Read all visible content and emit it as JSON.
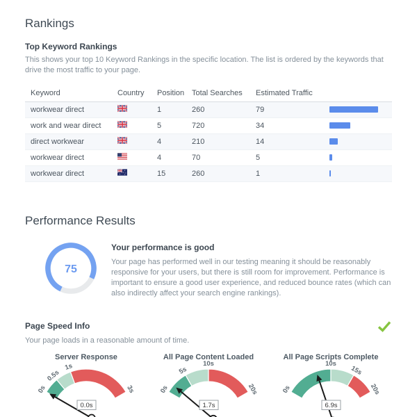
{
  "rankings": {
    "title": "Rankings",
    "subtitle": "Top Keyword Rankings",
    "description": "This shows your top 10 Keyword Rankings in the specific location. The list is ordered by the keywords that drive the most traffic to your page.",
    "table": {
      "columns": [
        "Keyword",
        "Country",
        "Position",
        "Total Searches",
        "Estimated Traffic"
      ],
      "bar_color": "#5b8ceb",
      "rows": [
        {
          "keyword": "workwear direct",
          "country": "gb",
          "position": "1",
          "total_searches": "260",
          "estimated_traffic": "79"
        },
        {
          "keyword": "work and wear direct",
          "country": "gb",
          "position": "5",
          "total_searches": "720",
          "estimated_traffic": "34"
        },
        {
          "keyword": "direct workwear",
          "country": "gb",
          "position": "4",
          "total_searches": "210",
          "estimated_traffic": "14"
        },
        {
          "keyword": "workwear direct",
          "country": "us",
          "position": "4",
          "total_searches": "70",
          "estimated_traffic": "5"
        },
        {
          "keyword": "workwear direct",
          "country": "au",
          "position": "15",
          "total_searches": "260",
          "estimated_traffic": "1"
        }
      ]
    }
  },
  "performance": {
    "title": "Performance Results",
    "score": "75",
    "score_color": "#74a2f1",
    "score_track_color": "#e8eaec",
    "result_heading": "Your performance is good",
    "result_text": "Your page has performed well in our testing meaning it should be reasonably responsive for your users, but there is still room for improvement. Performance is important to ensure a good user experience, and reduced bounce rates (which can also indirectly affect your search engine rankings)."
  },
  "page_speed": {
    "title": "Page Speed Info",
    "status": "pass",
    "check_color": "#86c440",
    "description": "Your page loads in a reasonable amount of time."
  },
  "chart_data": [
    {
      "type": "gauge",
      "title": "Server Response",
      "max": 3,
      "ticks": [
        {
          "label": "0s",
          "value": 0
        },
        {
          "label": "0.5s",
          "value": 0.5
        },
        {
          "label": "1s",
          "value": 1
        },
        {
          "label": "3s",
          "value": 3
        }
      ],
      "segments": [
        {
          "from": 0,
          "to": 0.5,
          "color": "good"
        },
        {
          "from": 0.5,
          "to": 1,
          "color": "ok"
        },
        {
          "from": 1,
          "to": 3,
          "color": "bad"
        }
      ],
      "value": 0.0,
      "value_label": "0.0s"
    },
    {
      "type": "gauge",
      "title": "All Page Content Loaded",
      "max": 20,
      "ticks": [
        {
          "label": "0s",
          "value": 0
        },
        {
          "label": "5s",
          "value": 5
        },
        {
          "label": "10s",
          "value": 10
        },
        {
          "label": "20s",
          "value": 20
        }
      ],
      "segments": [
        {
          "from": 0,
          "to": 5,
          "color": "good"
        },
        {
          "from": 5,
          "to": 10,
          "color": "ok"
        },
        {
          "from": 10,
          "to": 20,
          "color": "bad"
        }
      ],
      "value": 1.7,
      "value_label": "1.7s"
    },
    {
      "type": "gauge",
      "title": "All Page Scripts Complete",
      "max": 20,
      "ticks": [
        {
          "label": "0s",
          "value": 0
        },
        {
          "label": "10s",
          "value": 10
        },
        {
          "label": "15s",
          "value": 15
        },
        {
          "label": "20s",
          "value": 20
        }
      ],
      "segments": [
        {
          "from": 0,
          "to": 10,
          "color": "good"
        },
        {
          "from": 10,
          "to": 15,
          "color": "ok"
        },
        {
          "from": 15,
          "to": 20,
          "color": "bad"
        }
      ],
      "value": 6.9,
      "value_label": "6.9s"
    }
  ],
  "gauge_colors": {
    "good": "#52ad92",
    "ok": "#b8dccb",
    "bad": "#e25b5b",
    "needle": "#1a1a1a"
  }
}
